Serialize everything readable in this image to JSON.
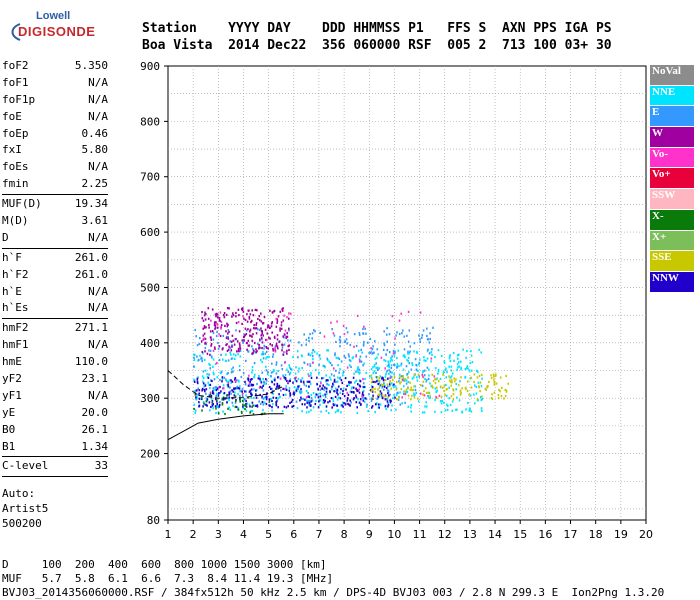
{
  "logo": {
    "line1": "Lowell",
    "line2": "DIGISONDE"
  },
  "header": {
    "line1": "Station    YYYY DAY    DDD HHMMSS P1   FFS S  AXN PPS IGA PS",
    "line2": "Boa Vista  2014 Dec22  356 060000 RSF  005 2  713 100 03+ 30"
  },
  "parameter_groups": [
    [
      [
        "foF2",
        "5.350"
      ],
      [
        "foF1",
        "N/A"
      ],
      [
        "foF1p",
        "N/A"
      ],
      [
        "foE",
        "N/A"
      ],
      [
        "foEp",
        "0.46"
      ],
      [
        "fxI",
        "5.80"
      ],
      [
        "foEs",
        "N/A"
      ],
      [
        "fmin",
        "2.25"
      ]
    ],
    [
      [
        "MUF(D)",
        "19.34"
      ],
      [
        "M(D)",
        "3.61"
      ],
      [
        "D",
        "N/A"
      ]
    ],
    [
      [
        "h`F",
        "261.0"
      ],
      [
        "h`F2",
        "261.0"
      ],
      [
        "h`E",
        "N/A"
      ],
      [
        "h`Es",
        "N/A"
      ]
    ],
    [
      [
        "hmF2",
        "271.1"
      ],
      [
        "hmF1",
        "N/A"
      ],
      [
        "hmE",
        "110.0"
      ],
      [
        "yF2",
        "23.1"
      ],
      [
        "yF1",
        "N/A"
      ],
      [
        "yE",
        "20.0"
      ],
      [
        "B0",
        "26.1"
      ],
      [
        "B1",
        "1.34"
      ]
    ],
    [
      [
        "C-level",
        "33"
      ]
    ]
  ],
  "auto": {
    "line1": "Auto:",
    "line2": "Artist5",
    "line3": "500200"
  },
  "footer": {
    "line1": "D     100  200  400  600  800 1000 1500 3000 [km]",
    "line2": "MUF   5.7  5.8  6.1  6.6  7.3  8.4 11.4 19.3 [MHz]",
    "line3": "BVJ03_2014356060000.RSF / 384fx512h 50 kHz 2.5 km / DPS-4D BVJ03 003 / 2.8 N 299.3 E  Ion2Png 1.3.20"
  },
  "legend": [
    {
      "label": "NoVal",
      "color": "#8c8c8c"
    },
    {
      "label": "NNE",
      "color": "#00e5ff"
    },
    {
      "label": "E",
      "color": "#3399ff"
    },
    {
      "label": "W",
      "color": "#a000a0"
    },
    {
      "label": "Vo-",
      "color": "#ff33cc"
    },
    {
      "label": "Vo+",
      "color": "#e8003a"
    },
    {
      "label": "SSW",
      "color": "#ffb6c1"
    },
    {
      "label": "X-",
      "color": "#0a7a0a"
    },
    {
      "label": "X+",
      "color": "#7cbf5a"
    },
    {
      "label": "SSE",
      "color": "#c8c800"
    },
    {
      "label": "NNW",
      "color": "#2200cc"
    }
  ],
  "chart_data": {
    "type": "scatter",
    "title": "",
    "xlabel": "",
    "ylabel": "",
    "xlim": [
      1,
      20
    ],
    "ylim": [
      80,
      900
    ],
    "x_ticks": [
      1,
      2,
      3,
      4,
      5,
      6,
      7,
      8,
      9,
      10,
      11,
      12,
      13,
      14,
      15,
      16,
      17,
      18,
      19,
      20
    ],
    "y_ticks": [
      80,
      200,
      300,
      400,
      500,
      600,
      700,
      800,
      900
    ],
    "grid": true,
    "echo_clusters": [
      {
        "name": "NNE",
        "x0": 2.0,
        "x1": 13.5,
        "y0": 275,
        "y1": 390,
        "n": 600
      },
      {
        "name": "E",
        "x0": 2.0,
        "x1": 11.5,
        "y0": 290,
        "y1": 430,
        "n": 400
      },
      {
        "name": "W",
        "x0": 2.3,
        "x1": 5.8,
        "y0": 380,
        "y1": 465,
        "n": 250
      },
      {
        "name": "NNW",
        "x0": 2.0,
        "x1": 10.0,
        "y0": 285,
        "y1": 340,
        "n": 350
      },
      {
        "name": "SSE",
        "x0": 9.0,
        "x1": 14.5,
        "y0": 300,
        "y1": 345,
        "n": 160
      },
      {
        "name": "Vo-",
        "x0": 2.0,
        "x1": 12.0,
        "y0": 300,
        "y1": 460,
        "n": 80
      },
      {
        "name": "X-",
        "x0": 2.0,
        "x1": 5.0,
        "y0": 270,
        "y1": 310,
        "n": 40
      }
    ],
    "trace_virtual_height": {
      "x": [
        1.0,
        1.6,
        2.2,
        3.0,
        4.0,
        5.0,
        5.6
      ],
      "y": [
        350,
        325,
        305,
        300,
        301,
        308,
        322
      ]
    },
    "trace_real_height": {
      "x": [
        1.0,
        1.6,
        2.2,
        3.0,
        4.0,
        5.0,
        5.6
      ],
      "y": [
        225,
        240,
        255,
        262,
        268,
        272,
        272
      ]
    }
  }
}
